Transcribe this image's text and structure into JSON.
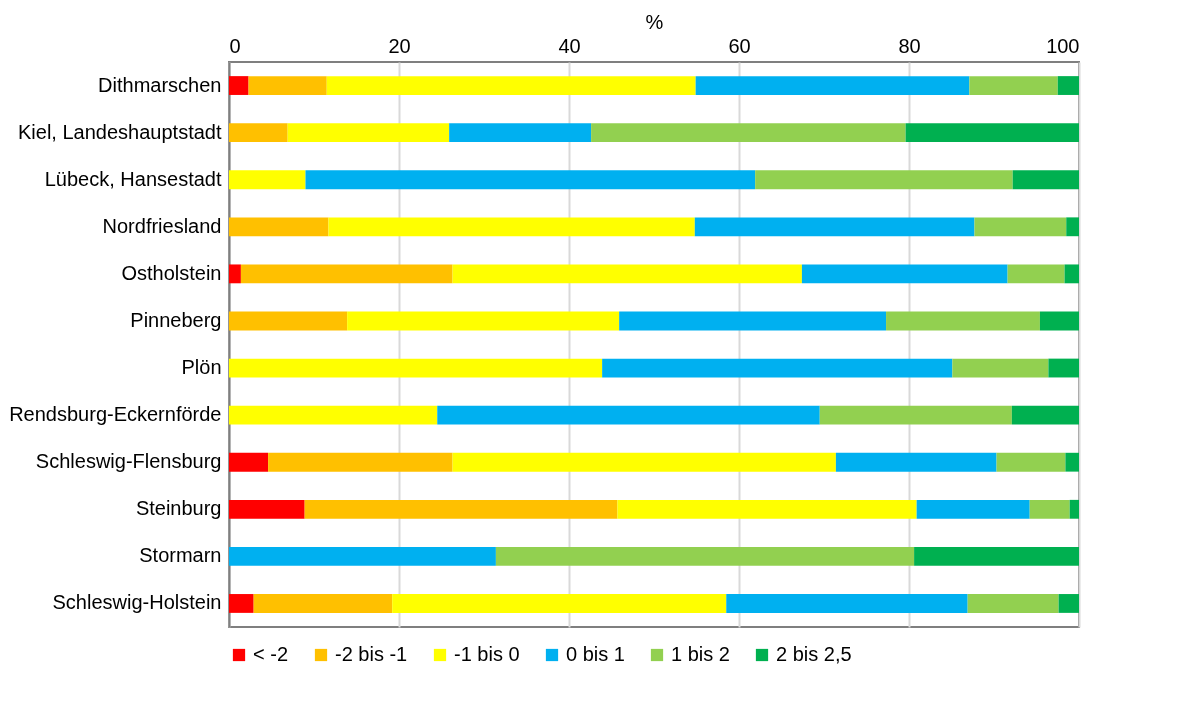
{
  "chart_data": {
    "type": "bar",
    "orientation": "horizontal",
    "stacked": true,
    "xlabel": "%",
    "xlim": [
      0,
      100
    ],
    "xticks": [
      0,
      20,
      40,
      60,
      80,
      100
    ],
    "grid": "x",
    "legend": "bottom",
    "categories": [
      "Dithmarschen",
      "Kiel, Landeshauptstadt",
      "Lübeck, Hansestadt",
      "Nordfriesland",
      "Ostholstein",
      "Pinneberg",
      "Plön",
      "Rendsburg-Eckernförde",
      "Schleswig-Flensburg",
      "Steinburg",
      "Stormarn",
      "Schleswig-Holstein"
    ],
    "series": [
      {
        "name": "< -2",
        "color": "#ff0000",
        "values": [
          2.3,
          0,
          0,
          0,
          1.4,
          0,
          0,
          0,
          4.6,
          8.9,
          0,
          2.9
        ]
      },
      {
        "name": "-2 bis -1",
        "color": "#ffc000",
        "values": [
          9.2,
          6.9,
          0,
          11.7,
          24.9,
          13.9,
          0,
          0,
          21.7,
          36.8,
          0,
          16.3
        ]
      },
      {
        "name": "-1 bis 0",
        "color": "#ffff00",
        "values": [
          43.4,
          19.0,
          9.0,
          43.1,
          41.1,
          32.0,
          43.9,
          24.5,
          45.1,
          35.2,
          0,
          39.3
        ]
      },
      {
        "name": "0 bis 1",
        "color": "#00b0f0",
        "values": [
          32.2,
          16.7,
          52.9,
          32.9,
          24.2,
          31.4,
          41.2,
          45.0,
          18.9,
          13.3,
          31.4,
          28.4
        ]
      },
      {
        "name": "1 bis 2",
        "color": "#92d050",
        "values": [
          10.4,
          37.0,
          30.3,
          10.8,
          6.7,
          18.1,
          11.3,
          22.6,
          8.1,
          4.7,
          49.2,
          10.7
        ]
      },
      {
        "name": "2 bis 2,5",
        "color": "#00b050",
        "values": [
          2.5,
          20.4,
          7.8,
          1.5,
          1.7,
          4.6,
          3.6,
          7.9,
          1.6,
          1.1,
          19.4,
          2.4
        ]
      }
    ]
  }
}
